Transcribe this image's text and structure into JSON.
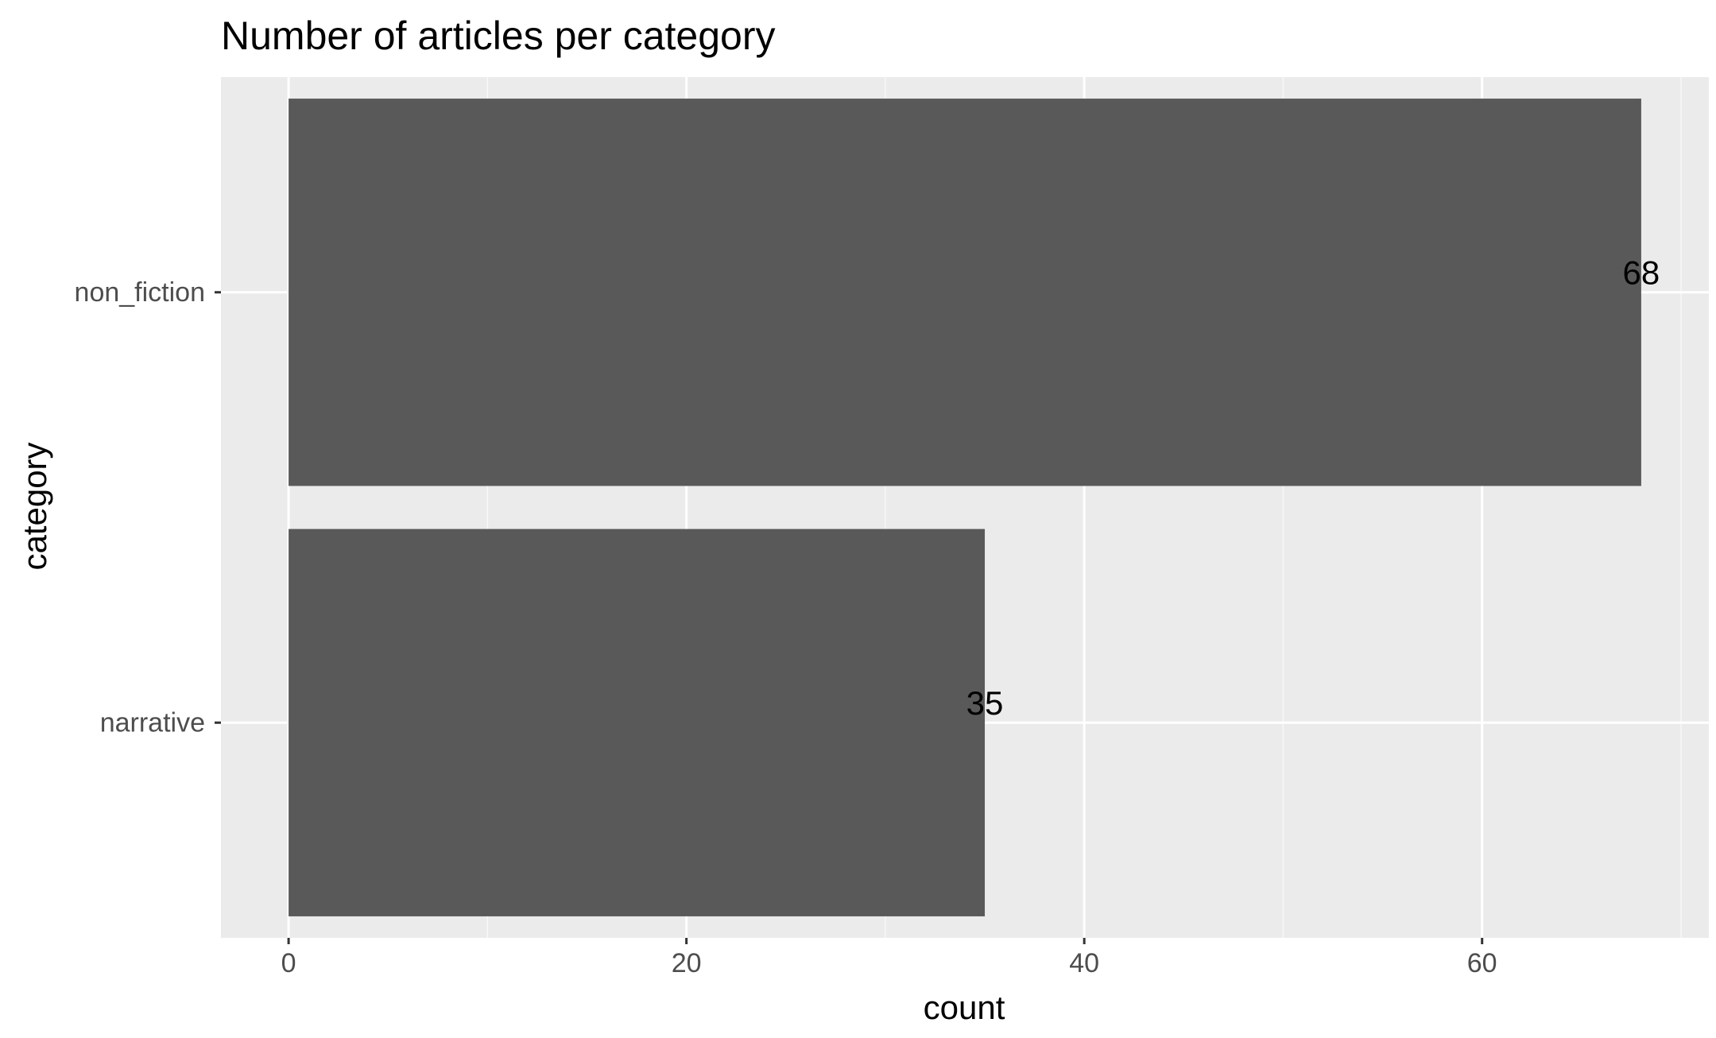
{
  "chart_data": {
    "type": "bar",
    "orientation": "horizontal",
    "title": "Number of articles per category",
    "xlabel": "count",
    "ylabel": "category",
    "categories": [
      "non_fiction",
      "narrative"
    ],
    "values": [
      68,
      35
    ],
    "data_labels": [
      "68",
      "35"
    ],
    "xlim": [
      -3.4,
      71.4
    ],
    "x_ticks": [
      0,
      20,
      40,
      60
    ],
    "x_tick_labels": [
      "0",
      "20",
      "40",
      "60"
    ],
    "x_minor_ticks": [
      10,
      30,
      50,
      70
    ],
    "grid": true,
    "legend": "none",
    "colors": {
      "panel_background": "#ebebeb",
      "grid_major": "#ffffff",
      "grid_minor": "#f7f7f7",
      "bar_fill": "#595959",
      "tick_text": "#4d4d4d",
      "title_text": "#000000",
      "tick_mark": "#333333"
    }
  }
}
